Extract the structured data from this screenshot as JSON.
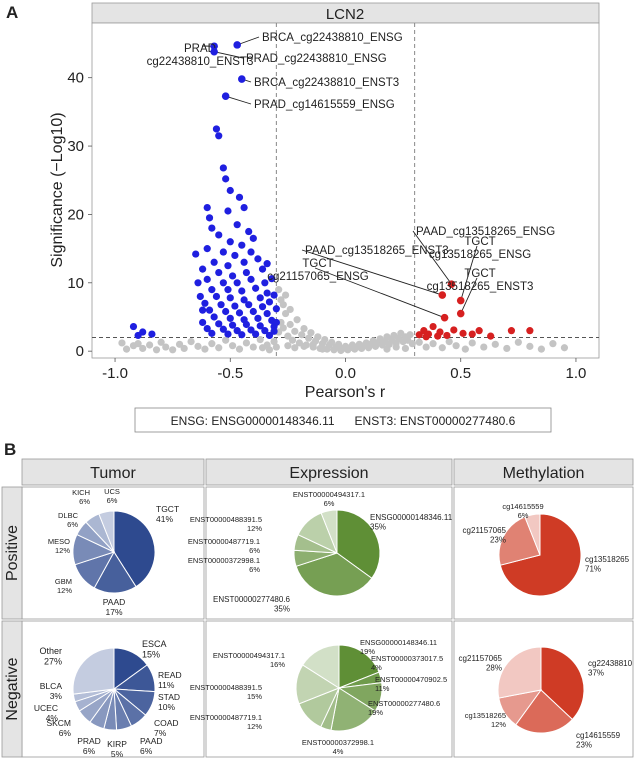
{
  "panel_a": {
    "letter": "A",
    "strip_title": "LCN2",
    "legend_box": "ENSG: ENSG00000148346.11      ENST3: ENST00000277480.6"
  },
  "panel_b": {
    "letter": "B",
    "col_headers": [
      "Tumor",
      "Expression",
      "Methylation"
    ],
    "row_headers": [
      "Positive",
      "Negative"
    ]
  },
  "colors": {
    "neg_point": "#1f1fe0",
    "pos_point": "#d62020",
    "ns_point": "#c4c4c4",
    "strip_bg": "#e4e4e4",
    "tumor_base": "#2e4a8f",
    "expr_base": "#5f8f36",
    "meth_base": "#cf3b25"
  },
  "chart_data": [
    {
      "type": "scatter",
      "title": "LCN2",
      "xlabel": "Pearson's r",
      "ylabel": "Significance (−Log10)",
      "xlim": [
        -1.1,
        1.1
      ],
      "ylim": [
        -1,
        48
      ],
      "xticks": [
        "-1.0",
        "-0.5",
        "0.0",
        "0.5",
        "1.0"
      ],
      "xtick_values": [
        -1.0,
        -0.5,
        0.0,
        0.5,
        1.0
      ],
      "yticks": [
        "0",
        "10",
        "20",
        "30",
        "40"
      ],
      "ytick_values": [
        0,
        10,
        20,
        30,
        40
      ],
      "thresholds": {
        "x": [
          -0.3,
          0.3
        ],
        "y": 2
      },
      "labeled_points": [
        {
          "label": "BRCA_cg22438810_ENSG",
          "x": -0.47,
          "y": 44.8,
          "group": "neg"
        },
        {
          "label": "PRAD\ncg22438810_ENST3",
          "x": -0.57,
          "y": 44.6,
          "group": "neg"
        },
        {
          "label": "PRAD_cg22438810_ENSG",
          "x": -0.57,
          "y": 43.8,
          "group": "neg"
        },
        {
          "label": "BRCA_cg22438810_ENST3",
          "x": -0.45,
          "y": 39.8,
          "group": "neg"
        },
        {
          "label": "PRAD_cg14615559_ENSG",
          "x": -0.52,
          "y": 37.3,
          "group": "neg"
        },
        {
          "label": "PAAD_cg13518265_ENSG",
          "x": 0.46,
          "y": 9.8,
          "group": "pos"
        },
        {
          "label": "PAAD_cg13518265_ENST3",
          "x": 0.42,
          "y": 8.2,
          "group": "pos"
        },
        {
          "label": "TGCT\ncg13518265_ENSG",
          "x": 0.5,
          "y": 7.4,
          "group": "pos"
        },
        {
          "label": "TGCT\ncg21157065_ENSG",
          "x": 0.43,
          "y": 4.9,
          "group": "pos"
        },
        {
          "label": "TGCT\ncg13518265_ENST3",
          "x": 0.5,
          "y": 5.5,
          "group": "pos"
        }
      ],
      "neg_points": [
        [
          -0.56,
          32.5
        ],
        [
          -0.55,
          31.5
        ],
        [
          -0.53,
          26.8
        ],
        [
          -0.52,
          25.2
        ],
        [
          -0.6,
          21.0
        ],
        [
          -0.5,
          23.5
        ],
        [
          -0.46,
          22.5
        ],
        [
          -0.59,
          19.5
        ],
        [
          -0.51,
          20.5
        ],
        [
          -0.44,
          21.0
        ],
        [
          -0.58,
          18.0
        ],
        [
          -0.47,
          18.5
        ],
        [
          -0.42,
          17.5
        ],
        [
          -0.55,
          17.0
        ],
        [
          -0.5,
          16.0
        ],
        [
          -0.45,
          15.5
        ],
        [
          -0.4,
          16.5
        ],
        [
          -0.6,
          15.0
        ],
        [
          -0.53,
          14.5
        ],
        [
          -0.48,
          14.0
        ],
        [
          -0.41,
          14.5
        ],
        [
          -0.57,
          13.0
        ],
        [
          -0.51,
          12.5
        ],
        [
          -0.44,
          13.0
        ],
        [
          -0.38,
          13.5
        ],
        [
          -0.62,
          12.0
        ],
        [
          -0.55,
          11.5
        ],
        [
          -0.49,
          11.0
        ],
        [
          -0.43,
          11.5
        ],
        [
          -0.36,
          12.0
        ],
        [
          -0.6,
          10.5
        ],
        [
          -0.53,
          10.0
        ],
        [
          -0.47,
          10.0
        ],
        [
          -0.41,
          10.5
        ],
        [
          -0.35,
          10.0
        ],
        [
          -0.58,
          9.0
        ],
        [
          -0.51,
          9.0
        ],
        [
          -0.45,
          8.8
        ],
        [
          -0.39,
          9.2
        ],
        [
          -0.34,
          8.5
        ],
        [
          -0.63,
          8.0
        ],
        [
          -0.56,
          8.0
        ],
        [
          -0.5,
          7.8
        ],
        [
          -0.44,
          7.5
        ],
        [
          -0.37,
          7.8
        ],
        [
          -0.33,
          7.2
        ],
        [
          -0.61,
          7.0
        ],
        [
          -0.54,
          6.8
        ],
        [
          -0.48,
          6.6
        ],
        [
          -0.42,
          6.8
        ],
        [
          -0.36,
          6.5
        ],
        [
          -0.59,
          6.0
        ],
        [
          -0.52,
          5.8
        ],
        [
          -0.46,
          5.6
        ],
        [
          -0.4,
          5.8
        ],
        [
          -0.34,
          5.5
        ],
        [
          -0.57,
          5.0
        ],
        [
          -0.5,
          4.8
        ],
        [
          -0.44,
          4.6
        ],
        [
          -0.38,
          4.8
        ],
        [
          -0.32,
          4.5
        ],
        [
          -0.62,
          4.2
        ],
        [
          -0.55,
          4.0
        ],
        [
          -0.49,
          3.8
        ],
        [
          -0.43,
          3.9
        ],
        [
          -0.37,
          3.7
        ],
        [
          -0.31,
          3.6
        ],
        [
          -0.6,
          3.3
        ],
        [
          -0.53,
          3.2
        ],
        [
          -0.47,
          3.0
        ],
        [
          -0.41,
          3.1
        ],
        [
          -0.35,
          3.0
        ],
        [
          -0.58,
          2.6
        ],
        [
          -0.51,
          2.5
        ],
        [
          -0.45,
          2.4
        ],
        [
          -0.39,
          2.5
        ],
        [
          -0.33,
          2.3
        ],
        [
          -0.31,
          2.9
        ],
        [
          -0.3,
          4.2
        ],
        [
          -0.3,
          6.2
        ],
        [
          -0.31,
          8.2
        ],
        [
          -0.32,
          10.6
        ],
        [
          -0.34,
          12.8
        ],
        [
          -0.92,
          3.6
        ],
        [
          -0.88,
          2.8
        ],
        [
          -0.84,
          2.5
        ],
        [
          -0.9,
          2.3
        ],
        [
          -0.65,
          14.2
        ],
        [
          -0.64,
          10.0
        ],
        [
          -0.62,
          6.0
        ]
      ],
      "pos_points": [
        [
          0.32,
          2.4
        ],
        [
          0.34,
          3.0
        ],
        [
          0.36,
          2.5
        ],
        [
          0.38,
          3.6
        ],
        [
          0.4,
          2.2
        ],
        [
          0.41,
          2.8
        ],
        [
          0.44,
          2.3
        ],
        [
          0.47,
          3.1
        ],
        [
          0.51,
          2.6
        ],
        [
          0.55,
          2.5
        ],
        [
          0.58,
          3.0
        ],
        [
          0.63,
          2.2
        ],
        [
          0.72,
          3.0
        ],
        [
          0.8,
          3.0
        ],
        [
          0.35,
          2.1
        ]
      ],
      "ns_points": [
        [
          -0.97,
          1.2
        ],
        [
          -0.95,
          0.3
        ],
        [
          -0.92,
          0.8
        ],
        [
          -0.9,
          1.1
        ],
        [
          -0.88,
          0.4
        ],
        [
          -0.85,
          0.9
        ],
        [
          -0.82,
          0.2
        ],
        [
          -0.8,
          1.3
        ],
        [
          -0.78,
          0.6
        ],
        [
          -0.75,
          0.2
        ],
        [
          -0.72,
          1.0
        ],
        [
          -0.7,
          0.4
        ],
        [
          -0.67,
          1.4
        ],
        [
          -0.64,
          0.7
        ],
        [
          -0.61,
          0.3
        ],
        [
          -0.58,
          1.1
        ],
        [
          -0.55,
          0.5
        ],
        [
          -0.52,
          1.6
        ],
        [
          -0.49,
          0.8
        ],
        [
          -0.46,
          0.3
        ],
        [
          -0.43,
          1.2
        ],
        [
          -0.4,
          0.6
        ],
        [
          -0.37,
          1.7
        ],
        [
          -0.34,
          0.9
        ],
        [
          -0.31,
          1.4
        ],
        [
          -0.29,
          2.8
        ],
        [
          -0.28,
          4.2
        ],
        [
          -0.27,
          3.4
        ],
        [
          -0.26,
          5.5
        ],
        [
          -0.25,
          2.2
        ],
        [
          -0.24,
          3.9
        ],
        [
          -0.23,
          1.6
        ],
        [
          -0.22,
          2.9
        ],
        [
          -0.21,
          4.6
        ],
        [
          -0.2,
          1.2
        ],
        [
          -0.19,
          2.4
        ],
        [
          -0.18,
          3.3
        ],
        [
          -0.17,
          0.9
        ],
        [
          -0.16,
          1.9
        ],
        [
          -0.15,
          2.7
        ],
        [
          -0.14,
          0.6
        ],
        [
          -0.13,
          1.5
        ],
        [
          -0.12,
          2.1
        ],
        [
          -0.11,
          0.4
        ],
        [
          -0.1,
          1.1
        ],
        [
          -0.09,
          1.7
        ],
        [
          -0.08,
          0.3
        ],
        [
          -0.07,
          0.9
        ],
        [
          -0.06,
          1.3
        ],
        [
          -0.05,
          0.2
        ],
        [
          -0.04,
          0.6
        ],
        [
          -0.03,
          1.0
        ],
        [
          -0.02,
          0.1
        ],
        [
          -0.01,
          0.4
        ],
        [
          0.0,
          0.7
        ],
        [
          0.01,
          0.2
        ],
        [
          0.02,
          0.5
        ],
        [
          0.03,
          0.9
        ],
        [
          0.04,
          0.3
        ],
        [
          0.05,
          0.6
        ],
        [
          0.06,
          1.0
        ],
        [
          0.07,
          0.4
        ],
        [
          0.08,
          0.8
        ],
        [
          0.09,
          1.2
        ],
        [
          0.1,
          0.5
        ],
        [
          0.11,
          1.0
        ],
        [
          0.12,
          1.5
        ],
        [
          0.13,
          0.7
        ],
        [
          0.14,
          1.2
        ],
        [
          0.15,
          1.8
        ],
        [
          0.16,
          0.9
        ],
        [
          0.17,
          1.4
        ],
        [
          0.18,
          2.1
        ],
        [
          0.19,
          1.0
        ],
        [
          0.2,
          1.6
        ],
        [
          0.21,
          2.3
        ],
        [
          0.22,
          1.2
        ],
        [
          0.23,
          1.9
        ],
        [
          0.24,
          2.6
        ],
        [
          0.25,
          1.4
        ],
        [
          0.26,
          2.1
        ],
        [
          0.27,
          1.6
        ],
        [
          0.28,
          2.4
        ],
        [
          0.29,
          1.1
        ],
        [
          0.32,
          1.3
        ],
        [
          0.35,
          0.6
        ],
        [
          0.38,
          1.1
        ],
        [
          0.42,
          0.5
        ],
        [
          0.45,
          1.4
        ],
        [
          0.48,
          0.8
        ],
        [
          0.52,
          0.3
        ],
        [
          0.55,
          1.2
        ],
        [
          0.6,
          0.6
        ],
        [
          0.65,
          1.0
        ],
        [
          0.7,
          0.4
        ],
        [
          0.75,
          1.3
        ],
        [
          0.8,
          0.7
        ],
        [
          0.85,
          0.3
        ],
        [
          0.9,
          1.1
        ],
        [
          0.95,
          0.5
        ],
        [
          -0.25,
          0.8
        ],
        [
          -0.22,
          0.5
        ],
        [
          -0.18,
          0.7
        ],
        [
          -0.14,
          1.0
        ],
        [
          -0.1,
          0.3
        ],
        [
          -0.3,
          0.6
        ],
        [
          -0.33,
          0.2
        ],
        [
          -0.36,
          0.5
        ],
        [
          0.18,
          0.3
        ],
        [
          0.22,
          0.6
        ],
        [
          0.26,
          0.4
        ],
        [
          -0.27,
          6.8
        ],
        [
          -0.24,
          6.1
        ],
        [
          -0.28,
          7.5
        ],
        [
          -0.26,
          8.2
        ],
        [
          -0.29,
          9.0
        ]
      ]
    },
    {
      "type": "pie",
      "title": "Tumor / Positive",
      "palette": "tumor",
      "slices": [
        {
          "label": "TGCT",
          "pct": "41%",
          "value": 41
        },
        {
          "label": "PAAD",
          "pct": "17%",
          "value": 17
        },
        {
          "label": "GBM",
          "pct": "12%",
          "value": 12
        },
        {
          "label": "MESO",
          "pct": "12%",
          "value": 12
        },
        {
          "label": "DLBC",
          "pct": "6%",
          "value": 6
        },
        {
          "label": "KICH",
          "pct": "6%",
          "value": 6
        },
        {
          "label": "UCS",
          "pct": "6%",
          "value": 6
        }
      ]
    },
    {
      "type": "pie",
      "title": "Expression / Positive",
      "palette": "expr",
      "slices": [
        {
          "label": "ENSG00000148346.11",
          "pct": "35%",
          "value": 35
        },
        {
          "label": "ENST00000277480.6",
          "pct": "35%",
          "value": 35
        },
        {
          "label": "ENST00000372998.1",
          "pct": "6%",
          "value": 6
        },
        {
          "label": "ENST00000487719.1",
          "pct": "6%",
          "value": 6
        },
        {
          "label": "ENST00000488391.5",
          "pct": "12%",
          "value": 12
        },
        {
          "label": "ENST00000494317.1",
          "pct": "6%",
          "value": 6
        }
      ]
    },
    {
      "type": "pie",
      "title": "Methylation / Positive",
      "palette": "meth",
      "slices": [
        {
          "label": "cg13518265",
          "pct": "71%",
          "value": 71
        },
        {
          "label": "cg21157065",
          "pct": "23%",
          "value": 23
        },
        {
          "label": "cg14615559",
          "pct": "6%",
          "value": 6
        }
      ]
    },
    {
      "type": "pie",
      "title": "Tumor / Negative",
      "palette": "tumor",
      "slices": [
        {
          "label": "ESCA",
          "pct": "15%",
          "value": 15
        },
        {
          "label": "READ",
          "pct": "11%",
          "value": 11
        },
        {
          "label": "STAD",
          "pct": "10%",
          "value": 10
        },
        {
          "label": "COAD",
          "pct": "7%",
          "value": 7
        },
        {
          "label": "PAAD",
          "pct": "6%",
          "value": 6
        },
        {
          "label": "KIRP",
          "pct": "5%",
          "value": 5
        },
        {
          "label": "PRAD",
          "pct": "6%",
          "value": 6
        },
        {
          "label": "SKCM",
          "pct": "6%",
          "value": 6
        },
        {
          "label": "UCEC",
          "pct": "4%",
          "value": 4
        },
        {
          "label": "BLCA",
          "pct": "3%",
          "value": 3
        },
        {
          "label": "Other",
          "pct": "27%",
          "value": 27
        }
      ]
    },
    {
      "type": "pie",
      "title": "Expression / Negative",
      "palette": "expr",
      "slices": [
        {
          "label": "ENSG00000148346.11",
          "pct": "19%",
          "value": 19
        },
        {
          "label": "ENST00000373017.5",
          "pct": "4%",
          "value": 4
        },
        {
          "label": "ENST00000470902.5",
          "pct": "11%",
          "value": 11
        },
        {
          "label": "ENST00000277480.6",
          "pct": "19%",
          "value": 19
        },
        {
          "label": "ENST00000372998.1",
          "pct": "4%",
          "value": 4
        },
        {
          "label": "ENST00000487719.1",
          "pct": "12%",
          "value": 12
        },
        {
          "label": "ENST00000488391.5",
          "pct": "15%",
          "value": 15
        },
        {
          "label": "ENST00000494317.1",
          "pct": "16%",
          "value": 16
        }
      ]
    },
    {
      "type": "pie",
      "title": "Methylation / Negative",
      "palette": "meth",
      "slices": [
        {
          "label": "cg22438810",
          "pct": "37%",
          "value": 37
        },
        {
          "label": "cg14615559",
          "pct": "23%",
          "value": 23
        },
        {
          "label": "cg13518265",
          "pct": "12%",
          "value": 12
        },
        {
          "label": "cg21157065",
          "pct": "28%",
          "value": 28
        }
      ]
    }
  ]
}
